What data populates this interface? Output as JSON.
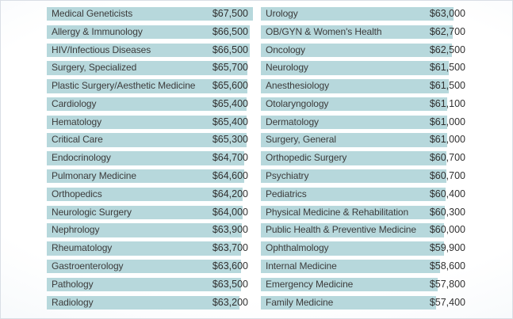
{
  "chart_data": {
    "type": "bar",
    "orientation": "horizontal",
    "unit": "USD",
    "bar_color": "#b7d8dc",
    "text_color": "#3c3c3c",
    "xlim": [
      0,
      67500
    ],
    "grid": false,
    "legend": false,
    "columns": [
      {
        "name": "left",
        "items": [
          {
            "label": "Medical Geneticists",
            "value": 67500,
            "display": "$67,500"
          },
          {
            "label": "Allergy & Immunology",
            "value": 66500,
            "display": "$66,500"
          },
          {
            "label": "HIV/Infectious Diseases",
            "value": 66500,
            "display": "$66,500"
          },
          {
            "label": "Surgery, Specialized",
            "value": 65700,
            "display": "$65,700"
          },
          {
            "label": "Plastic Surgery/Aesthetic Medicine",
            "value": 65600,
            "display": "$65,600"
          },
          {
            "label": "Cardiology",
            "value": 65400,
            "display": "$65,400"
          },
          {
            "label": "Hematology",
            "value": 65400,
            "display": "$65,400"
          },
          {
            "label": "Critical Care",
            "value": 65300,
            "display": "$65,300"
          },
          {
            "label": "Endocrinology",
            "value": 64700,
            "display": "$64,700"
          },
          {
            "label": "Pulmonary Medicine",
            "value": 64600,
            "display": "$64,600"
          },
          {
            "label": "Orthopedics",
            "value": 64200,
            "display": "$64,200"
          },
          {
            "label": "Neurologic Surgery",
            "value": 64000,
            "display": "$64,000"
          },
          {
            "label": "Nephrology",
            "value": 63900,
            "display": "$63,900"
          },
          {
            "label": "Rheumatology",
            "value": 63700,
            "display": "$63,700"
          },
          {
            "label": "Gastroenterology",
            "value": 63600,
            "display": "$63,600"
          },
          {
            "label": "Pathology",
            "value": 63500,
            "display": "$63,500"
          },
          {
            "label": "Radiology",
            "value": 63200,
            "display": "$63,200"
          }
        ]
      },
      {
        "name": "right",
        "items": [
          {
            "label": "Urology",
            "value": 63000,
            "display": "$63,000"
          },
          {
            "label": "OB/GYN & Women's Health",
            "value": 62700,
            "display": "$62,700"
          },
          {
            "label": "Oncology",
            "value": 62500,
            "display": "$62,500"
          },
          {
            "label": "Neurology",
            "value": 61500,
            "display": "$61,500"
          },
          {
            "label": "Anesthesiology",
            "value": 61500,
            "display": "$61,500"
          },
          {
            "label": "Otolaryngology",
            "value": 61100,
            "display": "$61,100"
          },
          {
            "label": "Dermatology",
            "value": 61000,
            "display": "$61,000"
          },
          {
            "label": "Surgery, General",
            "value": 61000,
            "display": "$61,000"
          },
          {
            "label": "Orthopedic Surgery",
            "value": 60700,
            "display": "$60,700"
          },
          {
            "label": "Psychiatry",
            "value": 60700,
            "display": "$60,700"
          },
          {
            "label": "Pediatrics",
            "value": 60400,
            "display": "$60,400"
          },
          {
            "label": "Physical Medicine & Rehabilitation",
            "value": 60300,
            "display": "$60,300"
          },
          {
            "label": "Public Health & Preventive Medicine",
            "value": 60000,
            "display": "$60,000"
          },
          {
            "label": "Ophthalmology",
            "value": 59900,
            "display": "$59,900"
          },
          {
            "label": "Internal Medicine",
            "value": 58600,
            "display": "$58,600"
          },
          {
            "label": "Emergency Medicine",
            "value": 57800,
            "display": "$57,800"
          },
          {
            "label": "Family Medicine",
            "value": 57400,
            "display": "$57,400"
          }
        ]
      }
    ]
  }
}
